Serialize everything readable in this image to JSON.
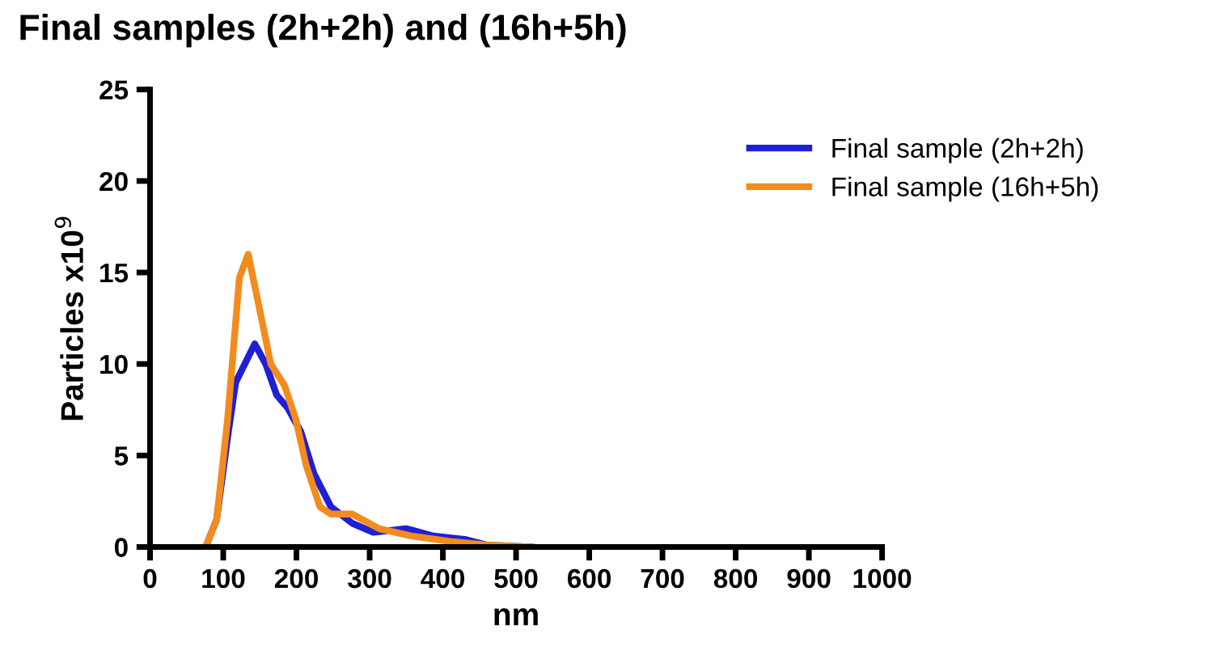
{
  "chart_data": {
    "type": "line",
    "title": "Final samples (2h+2h) and (16h+5h)",
    "xlabel": "nm",
    "ylabel": "Particles x10$^{9}$",
    "xlim": [
      0,
      1000
    ],
    "xticks": [
      0,
      100,
      200,
      300,
      400,
      500,
      600,
      700,
      800,
      900,
      1000
    ],
    "ylim": [
      0,
      25
    ],
    "yticks": [
      0,
      5,
      10,
      15,
      20,
      25
    ],
    "grid": false,
    "legend": "top right",
    "marker": "none",
    "line_style": "solid",
    "series": [
      {
        "name": "Final sample (2h+2h)",
        "color": "#1f1fd6",
        "x": [
          76,
          91,
          106,
          117,
          143,
          158,
          173,
          188,
          206,
          224,
          247,
          276,
          305,
          350,
          387,
          432,
          461,
          520
        ],
        "values": [
          0,
          1.5,
          6,
          9,
          11.1,
          10,
          8.3,
          7.6,
          6.3,
          4,
          2.2,
          1.3,
          0.8,
          1.0,
          0.6,
          0.4,
          0.1,
          0
        ]
      },
      {
        "name": "Final sample (16h+5h)",
        "color": "#f28c1e",
        "x": [
          76,
          91,
          106,
          122,
          134,
          147,
          165,
          184,
          199,
          213,
          232,
          247,
          276,
          313,
          357,
          410,
          461,
          520
        ],
        "values": [
          0,
          1.5,
          7,
          14.7,
          16,
          13.5,
          10,
          8.8,
          7,
          4.5,
          2.2,
          1.8,
          1.8,
          1.0,
          0.6,
          0.3,
          0.1,
          0
        ]
      }
    ]
  }
}
